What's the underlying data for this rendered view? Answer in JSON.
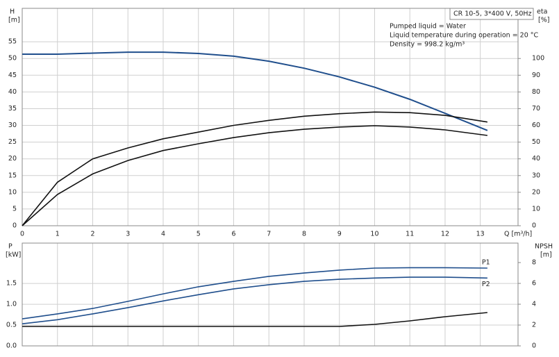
{
  "chart_data": [
    {
      "type": "line",
      "y_label": "H",
      "y_unit": "[m]",
      "y2_label": "eta",
      "y2_unit": "[%]",
      "x_label": "Q [m³/h]",
      "model": "CR 10-5, 3*400 V, 50Hz",
      "notes": [
        "Pumped liquid = Water",
        "Liquid temperature during operation = 20 °C",
        "Density = 998.2 kg/m³"
      ],
      "x": [
        0,
        1,
        2,
        3,
        4,
        5,
        6,
        7,
        8,
        9,
        10,
        11,
        12,
        13.2
      ],
      "xlim": [
        0,
        14.07
      ],
      "xticks": [
        0,
        1,
        2,
        3,
        4,
        5,
        6,
        7,
        8,
        9,
        10,
        11,
        12,
        13
      ],
      "ylim": [
        0,
        65
      ],
      "yticks": [
        0,
        5,
        10,
        15,
        20,
        25,
        30,
        35,
        40,
        45,
        50,
        55
      ],
      "y2lim": [
        0,
        130
      ],
      "y2ticks": [
        0,
        10,
        20,
        30,
        40,
        50,
        60,
        70,
        80,
        90,
        100
      ],
      "grid": true,
      "series": [
        {
          "color": "#1f4e8c",
          "axis": "y",
          "values": [
            51.3,
            51.3,
            51.6,
            51.9,
            51.9,
            51.5,
            50.7,
            49.2,
            47.1,
            44.5,
            41.4,
            37.8,
            33.6,
            28.5
          ]
        },
        {
          "color": "#111111",
          "axis": "y2",
          "values": [
            0,
            26,
            40,
            46.5,
            52,
            56,
            60,
            63,
            65.5,
            67,
            68,
            67.6,
            66,
            62
          ]
        },
        {
          "color": "#111111",
          "axis": "y2",
          "values": [
            0,
            18.7,
            31,
            39,
            45,
            49,
            52.7,
            55.6,
            57.7,
            59,
            59.8,
            59,
            57.3,
            54
          ]
        }
      ]
    },
    {
      "type": "line",
      "y_label": "P",
      "y_unit": "[kW]",
      "y2_label": "NPSH",
      "y2_unit": "[m]",
      "x": [
        0,
        1,
        2,
        3,
        4,
        5,
        6,
        7,
        8,
        9,
        10,
        11,
        12,
        13.2
      ],
      "xlim": [
        0,
        14.07
      ],
      "ylim": [
        0,
        2.47
      ],
      "yticks": [
        {
          "value": 0,
          "label": "0.0"
        },
        0.5,
        {
          "value": 1,
          "label": "1.0"
        },
        1.5
      ],
      "y2lim": [
        0,
        9.87
      ],
      "y2ticks": [
        0,
        2,
        4,
        6,
        8
      ],
      "grid": true,
      "series": [
        {
          "name": "P1",
          "color": "#1f4e8c",
          "axis": "y",
          "values": [
            0.65,
            0.77,
            0.9,
            1.07,
            1.25,
            1.42,
            1.55,
            1.67,
            1.75,
            1.82,
            1.87,
            1.88,
            1.88,
            1.87
          ]
        },
        {
          "name": "P2",
          "color": "#1f4e8c",
          "axis": "y",
          "values": [
            0.53,
            0.63,
            0.77,
            0.92,
            1.08,
            1.23,
            1.37,
            1.47,
            1.55,
            1.6,
            1.63,
            1.65,
            1.65,
            1.63
          ]
        },
        {
          "color": "#111111",
          "axis": "y2",
          "values": [
            1.87,
            1.87,
            1.87,
            1.87,
            1.87,
            1.87,
            1.87,
            1.87,
            1.87,
            1.87,
            2.07,
            2.4,
            2.8,
            3.2
          ]
        }
      ]
    }
  ]
}
